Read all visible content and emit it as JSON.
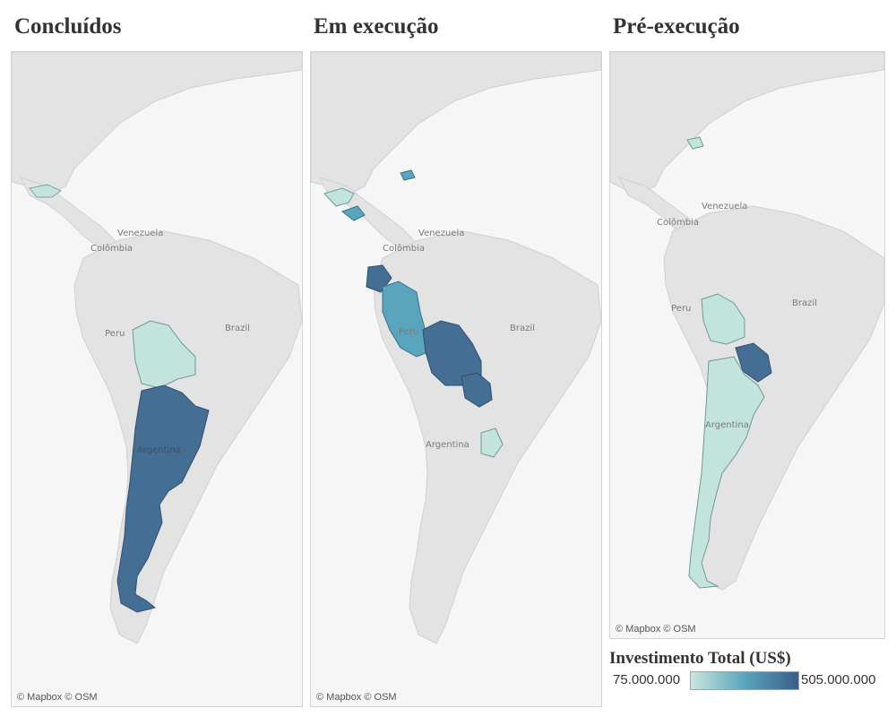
{
  "panels": [
    {
      "title": "Concluídos",
      "attribution": "© Mapbox © OSM",
      "labels": {
        "venezuela": "Venezuela",
        "colombia": "Colômbia",
        "peru": "Peru",
        "brazil": "Brazil",
        "argentina": "Argentina"
      }
    },
    {
      "title": "Em execução",
      "attribution": "© Mapbox © OSM",
      "labels": {
        "venezuela": "Venezuela",
        "colombia": "Colômbia",
        "peru": "Peru",
        "brazil": "Brazil",
        "argentina": "Argentina"
      }
    },
    {
      "title": "Pré-execução",
      "attribution": "© Mapbox © OSM",
      "labels": {
        "venezuela": "Venezuela",
        "colombia": "Colômbia",
        "peru": "Peru",
        "brazil": "Brazil",
        "argentina": "Argentina"
      }
    }
  ],
  "legend": {
    "title": "Investimento Total (US$)",
    "min_label": "75.000.000",
    "max_label": "505.000.000",
    "color_low": "#c9e6df",
    "color_high": "#3a5f88"
  },
  "colors": {
    "land": "#e3e3e3",
    "water": "#f6f6f6",
    "border": "#cfcfcf",
    "low": "#c3e4dc",
    "mid": "#58a5bd",
    "high": "#456e95"
  },
  "highlighted_countries": {
    "Concluídos": [
      "Honduras",
      "Bolívia",
      "Argentina"
    ],
    "Em execução": [
      "Guatemala",
      "Honduras",
      "Nicarágua",
      "Haiti",
      "Suriname",
      "Equador",
      "Peru",
      "Bolívia",
      "Paraguai",
      "Uruguai"
    ],
    "Pré-execução": [
      "República Dominicana",
      "Bolívia",
      "Paraguai",
      "Argentina"
    ]
  }
}
